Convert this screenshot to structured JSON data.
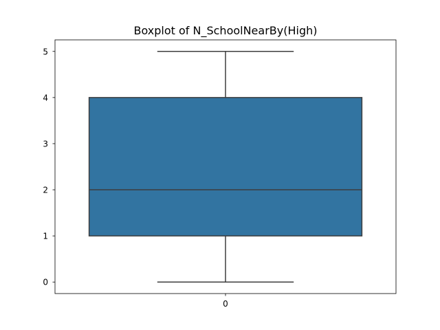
{
  "chart_data": {
    "type": "boxplot",
    "title": "Boxplot of N_SchoolNearBy(High)",
    "xlabel": "",
    "ylabel": "",
    "categories": [
      "0"
    ],
    "ylim": [
      -0.25,
      5.25
    ],
    "yticks": [
      0,
      1,
      2,
      3,
      4,
      5
    ],
    "boxes": [
      {
        "category": "0",
        "whisker_low": 0,
        "q1": 1,
        "median": 2,
        "q3": 4,
        "whisker_high": 5
      }
    ],
    "colors": {
      "box_fill": "#3274a1",
      "box_edge": "#3d3d3d"
    },
    "grid": false,
    "legend": "none"
  }
}
